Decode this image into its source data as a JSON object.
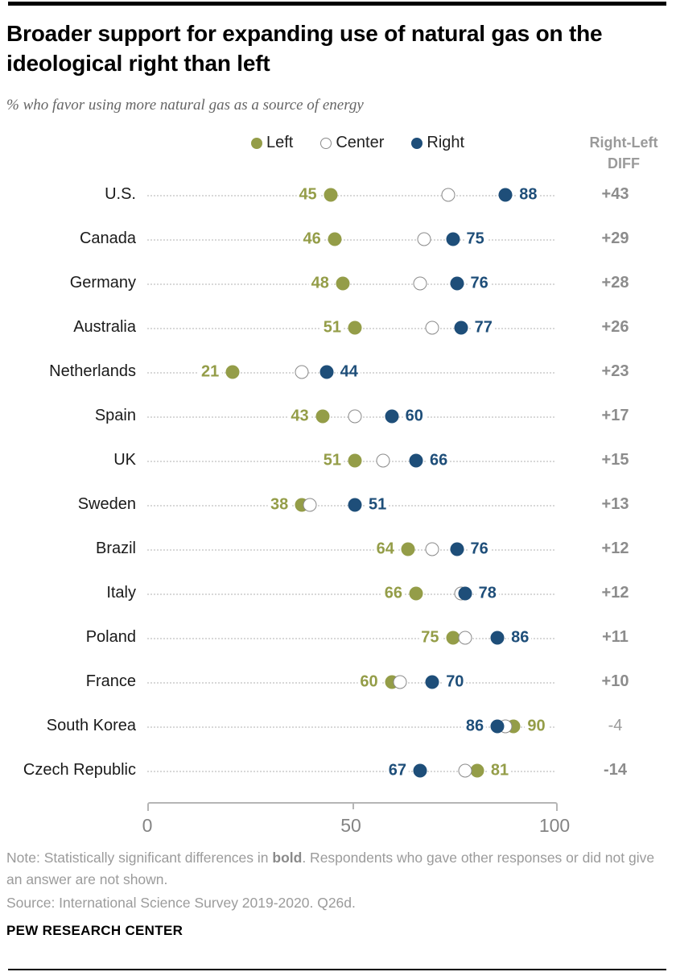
{
  "header": {
    "title": "Broader support for expanding use of natural gas on the ideological right than left",
    "subtitle": "% who favor using more natural gas as a source of energy"
  },
  "legend": {
    "left_label": "Left",
    "center_label": "Center",
    "right_label": "Right"
  },
  "diff_header": "Right-Left DIFF",
  "colors": {
    "left": "#949d48",
    "center_fill": "#ffffff",
    "center_border": "#8a8a8a",
    "right": "#1e4e79",
    "diff_text": "#8c8c8c"
  },
  "chart_data": {
    "type": "scatter",
    "orientation": "horizontal-dot-plot",
    "xlim": [
      0,
      100
    ],
    "x_ticks": [
      "0",
      "50",
      "100"
    ],
    "series_names": [
      "Left",
      "Center",
      "Right"
    ],
    "rows": [
      {
        "country": "U.S.",
        "left": 45,
        "center": 74,
        "right": 88,
        "diff": "+43",
        "diff_bold": true
      },
      {
        "country": "Canada",
        "left": 46,
        "center": 68,
        "right": 75,
        "diff": "+29",
        "diff_bold": true
      },
      {
        "country": "Germany",
        "left": 48,
        "center": 67,
        "right": 76,
        "diff": "+28",
        "diff_bold": true
      },
      {
        "country": "Australia",
        "left": 51,
        "center": 70,
        "right": 77,
        "diff": "+26",
        "diff_bold": true
      },
      {
        "country": "Netherlands",
        "left": 21,
        "center": 38,
        "right": 44,
        "diff": "+23",
        "diff_bold": true
      },
      {
        "country": "Spain",
        "left": 43,
        "center": 51,
        "right": 60,
        "diff": "+17",
        "diff_bold": true
      },
      {
        "country": "UK",
        "left": 51,
        "center": 58,
        "right": 66,
        "diff": "+15",
        "diff_bold": true
      },
      {
        "country": "Sweden",
        "left": 38,
        "center": 40,
        "right": 51,
        "diff": "+13",
        "diff_bold": true
      },
      {
        "country": "Brazil",
        "left": 64,
        "center": 70,
        "right": 76,
        "diff": "+12",
        "diff_bold": true
      },
      {
        "country": "Italy",
        "left": 66,
        "center": 77,
        "right": 78,
        "diff": "+12",
        "diff_bold": true
      },
      {
        "country": "Poland",
        "left": 75,
        "center": 78,
        "right": 86,
        "diff": "+11",
        "diff_bold": true
      },
      {
        "country": "France",
        "left": 60,
        "center": 62,
        "right": 70,
        "diff": "+10",
        "diff_bold": true
      },
      {
        "country": "South Korea",
        "left": 90,
        "center": 88,
        "right": 86,
        "diff": "-4",
        "diff_bold": false
      },
      {
        "country": "Czech Republic",
        "left": 81,
        "center": 78,
        "right": 67,
        "diff": "-14",
        "diff_bold": true
      }
    ]
  },
  "footer": {
    "note_prefix": "Note: Statistically significant differences in ",
    "note_bold": "bold",
    "note_suffix": ". Respondents who gave other responses or did not give an answer are not shown.",
    "source": "Source: International Science Survey 2019-2020. Q26d.",
    "brand": "PEW RESEARCH CENTER"
  }
}
